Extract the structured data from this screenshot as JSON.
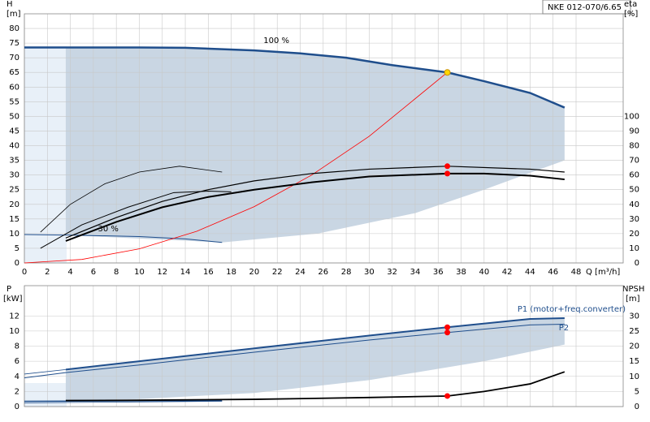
{
  "chart_data": [
    {
      "type": "line",
      "title": "NKE 012-070/6.65",
      "y_label": "H",
      "y_unit": "[m]",
      "y2_label": "eta",
      "y2_unit": "[%]",
      "x_label": "Q [m³/h]",
      "xlim": [
        0,
        52.1
      ],
      "xticks": [
        0,
        2,
        4,
        6,
        8,
        10,
        12,
        14,
        16,
        18,
        20,
        22,
        24,
        26,
        28,
        30,
        32,
        34,
        36,
        38,
        40,
        42,
        44,
        46,
        48
      ],
      "ylim": [
        0,
        85
      ],
      "yticks": [
        0,
        5,
        10,
        15,
        20,
        25,
        30,
        35,
        40,
        45,
        50,
        55,
        60,
        65,
        70,
        75,
        80
      ],
      "y2lim": [
        0,
        170
      ],
      "y2ticks": [
        0,
        10,
        20,
        30,
        40,
        50,
        60,
        70,
        80,
        90,
        100
      ],
      "grid": true,
      "region": {
        "color": "#c9d6e3",
        "x": [
          3.6,
          10,
          14,
          20,
          24,
          28,
          32,
          36.8,
          40,
          44,
          47,
          47,
          40,
          34,
          25.5,
          17.2,
          3.6
        ],
        "y": [
          73.5,
          73.5,
          73.4,
          72.5,
          71.5,
          70,
          67.5,
          65,
          62,
          58,
          53,
          35,
          25,
          17,
          10,
          7,
          9.5
        ]
      },
      "series": [
        {
          "color": "#1f4e8c",
          "width": 2.5,
          "x": [
            0,
            3.6,
            10,
            14,
            20,
            24,
            28,
            32,
            36.8,
            40,
            44,
            47
          ],
          "values": [
            73.5,
            73.5,
            73.5,
            73.4,
            72.5,
            71.5,
            70,
            67.5,
            65,
            62,
            58,
            53
          ]
        },
        {
          "color": "#1f4e8c",
          "width": 1,
          "x": [
            0,
            4,
            10,
            14,
            17.2
          ],
          "values": [
            9.7,
            9.5,
            9,
            8.2,
            7
          ]
        },
        {
          "color": "#ff0000",
          "width": 0.8,
          "x": [
            0,
            5,
            10,
            15,
            20,
            25,
            30,
            36.8
          ],
          "values": [
            0,
            1.2,
            4.8,
            10.8,
            19.2,
            30,
            43.2,
            65
          ]
        },
        {
          "color": "#000000",
          "width": 2,
          "axis": "y2",
          "x": [
            3.6,
            8,
            12,
            16,
            20,
            25,
            30,
            36.8,
            40,
            44,
            47
          ],
          "values": [
            15,
            28,
            38,
            45,
            50,
            55,
            59,
            61,
            61,
            59.5,
            57
          ]
        },
        {
          "color": "#000000",
          "width": 1.2,
          "axis": "y2",
          "x": [
            3.6,
            8,
            12,
            16,
            20,
            25,
            30,
            36.8,
            44,
            47
          ],
          "values": [
            17,
            31,
            42,
            50,
            56,
            61,
            64,
            66,
            64,
            62
          ]
        },
        {
          "color": "#000000",
          "width": 0.8,
          "axis": "y2",
          "x": [
            1.4,
            4,
            7,
            10,
            13.5,
            17.2
          ],
          "values": [
            21,
            40,
            54,
            62,
            66,
            62
          ]
        },
        {
          "color": "#000000",
          "width": 1,
          "axis": "y2",
          "x": [
            1.4,
            5,
            9,
            13,
            16,
            18
          ],
          "values": [
            10,
            26,
            38,
            48,
            49,
            48.5
          ]
        }
      ],
      "points": [
        {
          "x": 36.8,
          "y": 65,
          "color": "#ffd700"
        },
        {
          "x": 36.8,
          "y": 66,
          "axis": "y2",
          "color": "#ff0000"
        },
        {
          "x": 36.8,
          "y": 61,
          "axis": "y2",
          "color": "#ff0000"
        }
      ],
      "annotations": [
        {
          "text": "100 %",
          "x": 20.8,
          "y": 75.9
        },
        {
          "text": "30 %",
          "x": 6.4,
          "y": 11.6
        }
      ]
    },
    {
      "type": "line",
      "y_label": "P",
      "y_unit": "[kW]",
      "y2_label": "NPSH",
      "y2_unit": "[m]",
      "xlim": [
        0,
        52.1
      ],
      "ylim": [
        0,
        16
      ],
      "yticks": [
        0,
        2,
        4,
        6,
        8,
        10,
        12
      ],
      "y2lim": [
        0,
        40
      ],
      "y2ticks": [
        0,
        5,
        10,
        15,
        20,
        25,
        30
      ],
      "grid": true,
      "region": {
        "color": "#c9d6e3",
        "x": [
          3.6,
          10,
          20,
          30,
          36.8,
          44,
          47,
          47,
          40,
          30,
          20,
          10,
          3.6
        ],
        "y": [
          4.9,
          6,
          7.7,
          9.4,
          10.5,
          11.6,
          11.7,
          8.2,
          6,
          3.5,
          1.8,
          1,
          0.8
        ]
      },
      "series": [
        {
          "color": "#1f4e8c",
          "width": 2,
          "x": [
            3.6,
            10,
            20,
            30,
            36.8,
            44,
            47
          ],
          "values": [
            4.9,
            6,
            7.7,
            9.4,
            10.5,
            11.6,
            11.7
          ]
        },
        {
          "color": "#1f4e8c",
          "width": 0.8,
          "x": [
            0,
            3.6
          ],
          "values": [
            4.3,
            4.9
          ]
        },
        {
          "color": "#1f4e8c",
          "width": 1,
          "x": [
            0,
            3.6,
            10,
            20,
            30,
            36.8,
            44,
            47
          ],
          "values": [
            3.8,
            4.5,
            5.5,
            7.2,
            8.8,
            9.8,
            10.8,
            10.9
          ]
        },
        {
          "color": "#1f4e8c",
          "width": 1.5,
          "x": [
            0,
            17.2
          ],
          "values": [
            0.7,
            0.8
          ]
        },
        {
          "color": "#1f4e8c",
          "width": 0.8,
          "x": [
            0,
            17.2
          ],
          "values": [
            0.5,
            0.7
          ]
        },
        {
          "color": "#000000",
          "width": 1.8,
          "axis": "y2",
          "x": [
            3.6,
            10,
            20,
            30,
            36.8,
            40,
            44,
            47
          ],
          "values": [
            2,
            2.1,
            2.4,
            3,
            3.5,
            5,
            7.5,
            11.5
          ]
        }
      ],
      "points": [
        {
          "x": 36.8,
          "y": 10.5,
          "color": "#ff0000"
        },
        {
          "x": 36.8,
          "y": 9.8,
          "color": "#ff0000"
        },
        {
          "x": 36.8,
          "y": 3.5,
          "axis": "y2",
          "color": "#ff0000"
        }
      ],
      "annotations": [
        {
          "text": "P1 (motor+freq.converter)",
          "x": 42.9,
          "y": 12.9
        },
        {
          "text": "P2",
          "x": 46.5,
          "y": 10.4
        }
      ]
    }
  ]
}
